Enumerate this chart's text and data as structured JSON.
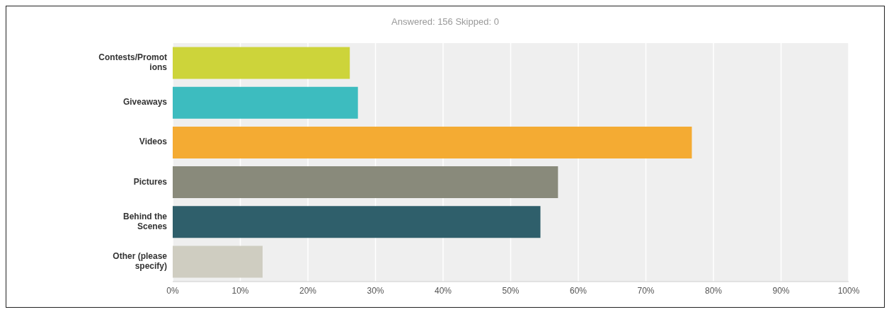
{
  "chart_data": {
    "type": "bar",
    "orientation": "horizontal",
    "title": "Answered: 156    Skipped: 0",
    "categories": [
      "Contests/Promotions",
      "Giveaways",
      "Videos",
      "Pictures",
      "Behind the Scenes",
      "Other (please specify)"
    ],
    "values": [
      26.2,
      27.4,
      76.8,
      57.0,
      54.4,
      13.3
    ],
    "colors": [
      "#cdd43a",
      "#3dbcbf",
      "#f4ab33",
      "#898a7b",
      "#2f5f6b",
      "#cfcdc1"
    ],
    "xlim": [
      0,
      100
    ],
    "xticks": [
      {
        "value": 0,
        "label": "0%"
      },
      {
        "value": 10,
        "label": "10%"
      },
      {
        "value": 20,
        "label": "20%"
      },
      {
        "value": 30,
        "label": "30%"
      },
      {
        "value": 40,
        "label": "40%"
      },
      {
        "value": 50,
        "label": "50%"
      },
      {
        "value": 60,
        "label": "60%"
      },
      {
        "value": 70,
        "label": "70%"
      },
      {
        "value": 80,
        "label": "80%"
      },
      {
        "value": 90,
        "label": "90%"
      },
      {
        "value": 100,
        "label": "100%"
      }
    ],
    "grid": "x"
  }
}
